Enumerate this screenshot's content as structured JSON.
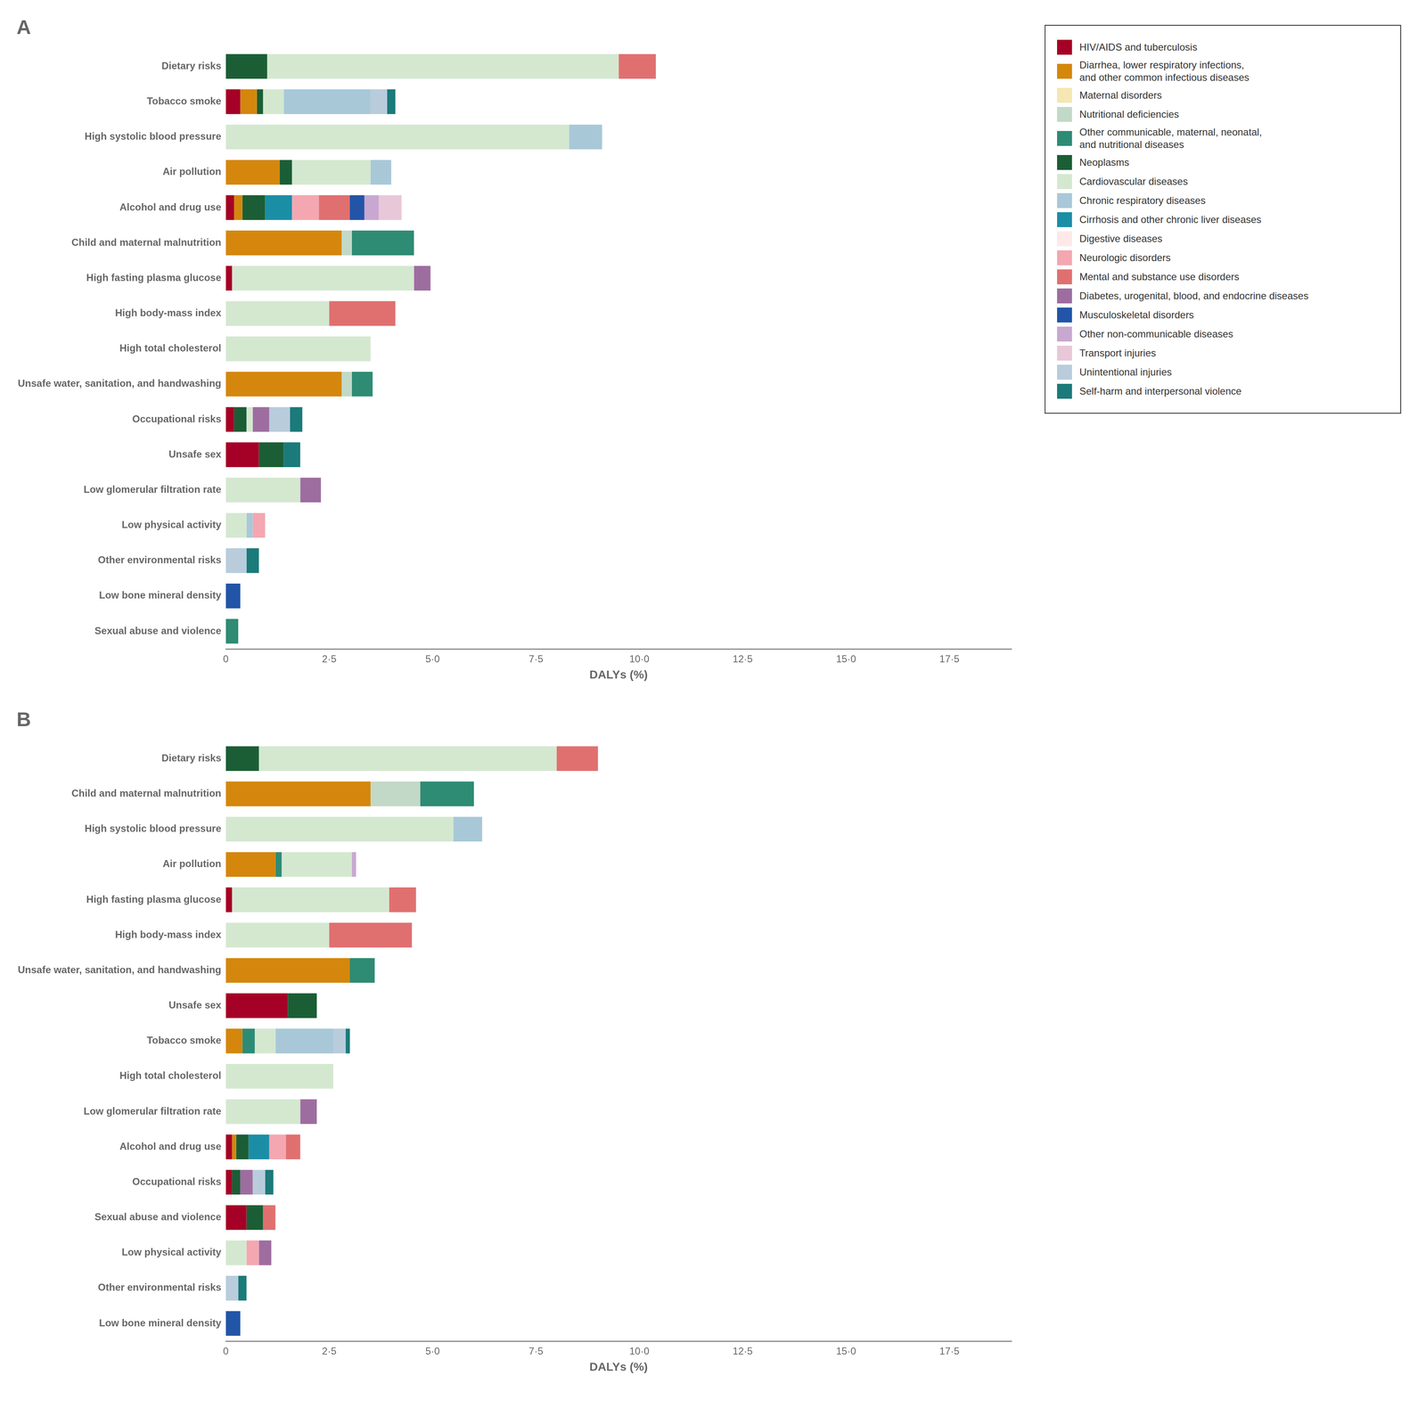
{
  "chart_data": [
    {
      "type": "bar",
      "title": "A",
      "orientation": "horizontal",
      "stacked": true,
      "grid": false,
      "legend": "right",
      "xlabel": "DALYs (%)",
      "xlim": [
        0,
        19.0
      ],
      "xticks": [
        0,
        {
          "value": 2.5,
          "label": "2·5"
        },
        {
          "value": 5.0,
          "label": "5·0"
        },
        {
          "value": 7.5,
          "label": "7·5"
        },
        {
          "value": 10.0,
          "label": "10·0"
        },
        {
          "value": 12.5,
          "label": "12·5"
        },
        {
          "value": 15.0,
          "label": "15·0"
        },
        {
          "value": 17.5,
          "label": "17·5"
        }
      ],
      "categories": [
        "Dietary risks",
        "Tobacco smoke",
        "High systolic blood pressure",
        "Air pollution",
        "Alcohol and drug use",
        "Child and maternal malnutrition",
        "High fasting plasma glucose",
        "High body-mass index",
        "High total cholesterol",
        "Unsafe water, sanitation, and handwashing",
        "Occupational risks",
        "Unsafe sex",
        "Low glomerular filtration rate",
        "Low physical activity",
        "Other environmental risks",
        "Low bone mineral density",
        "Sexual abuse and violence"
      ],
      "series": [
        {
          "name": "HIV/AIDS and tuberculosis",
          "color": "#A50026",
          "values": [
            0,
            0.35,
            0,
            0,
            0.2,
            0,
            0.15,
            0,
            0,
            0,
            0.2,
            0.8,
            0,
            0,
            0,
            0,
            0
          ]
        },
        {
          "name": "Diarrhea, lower respiratory infections,\nand other common infectious diseases",
          "color": "#D4870C",
          "values": [
            0,
            0.4,
            0,
            1.3,
            0.2,
            2.8,
            0,
            0,
            0,
            2.8,
            0,
            0,
            0,
            0,
            0,
            0,
            0
          ]
        },
        {
          "name": "Maternal disorders",
          "color": "#F5E6B2",
          "values": [
            0,
            0,
            0,
            0,
            0,
            0,
            0,
            0,
            0,
            0,
            0,
            0,
            0,
            0,
            0,
            0,
            0
          ]
        },
        {
          "name": "Nutritional deficiencies",
          "color": "#C2D9C8",
          "values": [
            0,
            0,
            0,
            0,
            0,
            0.25,
            0,
            0,
            0,
            0.25,
            0,
            0,
            0,
            0,
            0,
            0,
            0
          ]
        },
        {
          "name": "Other communicable, maternal, neonatal,\nand nutritional diseases",
          "color": "#2E8B74",
          "values": [
            0,
            0,
            0,
            0,
            0,
            1.5,
            0,
            0,
            0,
            0.5,
            0,
            0,
            0,
            0,
            0,
            0,
            0.3
          ]
        },
        {
          "name": "Neoplasms",
          "color": "#1B5E35",
          "values": [
            1.0,
            0.15,
            0,
            0.3,
            0.55,
            0,
            0,
            0,
            0,
            0,
            0.3,
            0.6,
            0,
            0,
            0,
            0,
            0
          ]
        },
        {
          "name": "Cardiovascular diseases",
          "color": "#D4E8D0",
          "values": [
            8.5,
            0.5,
            8.3,
            1.9,
            0,
            0,
            4.4,
            2.5,
            3.5,
            0,
            0.15,
            0,
            1.8,
            0.5,
            0,
            0,
            0
          ]
        },
        {
          "name": "Chronic respiratory diseases",
          "color": "#A8C8D8",
          "values": [
            0,
            2.1,
            0.8,
            0.5,
            0,
            0,
            0,
            0,
            0,
            0,
            0,
            0,
            0,
            0.15,
            0,
            0,
            0
          ]
        },
        {
          "name": "Cirrhosis and other chronic liver diseases",
          "color": "#1B8EA6",
          "values": [
            0,
            0,
            0,
            0,
            0.65,
            0,
            0,
            0,
            0,
            0,
            0,
            0,
            0,
            0,
            0,
            0,
            0
          ]
        },
        {
          "name": "Digestive diseases",
          "color": "#FFE8E8",
          "values": [
            0,
            0,
            0,
            0,
            0,
            0,
            0,
            0,
            0,
            0,
            0,
            0,
            0,
            0,
            0,
            0,
            0
          ]
        },
        {
          "name": "Neurologic disorders",
          "color": "#F4A7B0",
          "values": [
            0,
            0,
            0,
            0,
            0.65,
            0,
            0,
            0,
            0,
            0,
            0,
            0,
            0,
            0.3,
            0,
            0,
            0
          ]
        },
        {
          "name": "Mental and substance use disorders",
          "color": "#E07070",
          "values": [
            0.9,
            0,
            0,
            0,
            0.75,
            0,
            0,
            1.6,
            0,
            0,
            0,
            0,
            0,
            0,
            0,
            0,
            0
          ]
        },
        {
          "name": "Diabetes, urogenital, blood, and endocrine diseases",
          "color": "#9E6DA0",
          "values": [
            0,
            0,
            0,
            0,
            0,
            0,
            0.4,
            0,
            0,
            0,
            0.4,
            0,
            0.5,
            0,
            0,
            0,
            0
          ]
        },
        {
          "name": "Musculoskeletal disorders",
          "color": "#2255A8",
          "values": [
            0,
            0,
            0,
            0,
            0.35,
            0,
            0,
            0,
            0,
            0,
            0,
            0,
            0,
            0,
            0,
            0.35,
            0
          ]
        },
        {
          "name": "Other non-communicable diseases",
          "color": "#C8A8D0",
          "values": [
            0,
            0,
            0,
            0,
            0.35,
            0,
            0,
            0,
            0,
            0,
            0,
            0,
            0,
            0,
            0,
            0,
            0
          ]
        },
        {
          "name": "Transport injuries",
          "color": "#E8C8D8",
          "values": [
            0,
            0,
            0,
            0,
            0.55,
            0,
            0,
            0,
            0,
            0,
            0,
            0,
            0,
            0,
            0,
            0,
            0
          ]
        },
        {
          "name": "Unintentional injuries",
          "color": "#B8CCDC",
          "values": [
            0,
            0.4,
            0,
            0,
            0,
            0,
            0,
            0,
            0,
            0,
            0.5,
            0,
            0,
            0,
            0.5,
            0,
            0
          ]
        },
        {
          "name": "Self-harm and interpersonal violence",
          "color": "#1B7A7A",
          "values": [
            0,
            0.2,
            0,
            0,
            0,
            0,
            0,
            0,
            0,
            0,
            0.3,
            0.4,
            0,
            0,
            0.3,
            0,
            0
          ]
        }
      ]
    },
    {
      "type": "bar",
      "title": "B",
      "orientation": "horizontal",
      "stacked": true,
      "grid": false,
      "xlabel": "DALYs (%)",
      "xlim": [
        0,
        19.0
      ],
      "xticks": [
        0,
        {
          "value": 2.5,
          "label": "2·5"
        },
        {
          "value": 5.0,
          "label": "5·0"
        },
        {
          "value": 7.5,
          "label": "7·5"
        },
        {
          "value": 10.0,
          "label": "10·0"
        },
        {
          "value": 12.5,
          "label": "12·5"
        },
        {
          "value": 15.0,
          "label": "15·0"
        },
        {
          "value": 17.5,
          "label": "17·5"
        }
      ],
      "categories": [
        "Dietary risks",
        "Child and maternal malnutrition",
        "High systolic blood pressure",
        "Air pollution",
        "High fasting plasma glucose",
        "High body-mass index",
        "Unsafe water, sanitation, and handwashing",
        "Unsafe sex",
        "Tobacco smoke",
        "High total cholesterol",
        "Low glomerular filtration rate",
        "Alcohol and drug use",
        "Occupational risks",
        "Sexual abuse and violence",
        "Low physical activity",
        "Other environmental risks",
        "Low bone mineral density"
      ],
      "series": [
        {
          "name": "HIV/AIDS and tuberculosis",
          "color": "#A50026",
          "values": [
            0,
            0,
            0,
            0,
            0.15,
            0,
            0,
            1.5,
            0,
            0,
            0,
            0.15,
            0.15,
            0.5,
            0,
            0,
            0
          ]
        },
        {
          "name": "Diarrhea, lower respiratory infections,\nand other common infectious diseases",
          "color": "#D4870C",
          "values": [
            0,
            3.5,
            0,
            1.2,
            0,
            0,
            3.0,
            0,
            0.4,
            0,
            0,
            0.1,
            0,
            0,
            0,
            0,
            0
          ]
        },
        {
          "name": "Maternal disorders",
          "color": "#F5E6B2",
          "values": [
            0,
            0,
            0,
            0,
            0,
            0,
            0,
            0,
            0,
            0,
            0,
            0,
            0,
            0,
            0,
            0,
            0
          ]
        },
        {
          "name": "Nutritional deficiencies",
          "color": "#C2D9C8",
          "values": [
            0,
            1.2,
            0,
            0,
            0,
            0,
            0,
            0,
            0,
            0,
            0,
            0,
            0,
            0,
            0,
            0,
            0
          ]
        },
        {
          "name": "Other communicable, maternal, neonatal,\nand nutritional diseases",
          "color": "#2E8B74",
          "values": [
            0,
            1.3,
            0,
            0.15,
            0,
            0,
            0.6,
            0,
            0.3,
            0,
            0,
            0,
            0,
            0,
            0,
            0,
            0
          ]
        },
        {
          "name": "Neoplasms",
          "color": "#1B5E35",
          "values": [
            0.8,
            0,
            0,
            0,
            0,
            0,
            0,
            0.7,
            0,
            0,
            0,
            0.3,
            0.2,
            0.4,
            0,
            0,
            0
          ]
        },
        {
          "name": "Cardiovascular diseases",
          "color": "#D4E8D0",
          "values": [
            7.2,
            0,
            5.5,
            1.7,
            3.8,
            2.5,
            0,
            0,
            0.5,
            2.6,
            1.8,
            0,
            0,
            0,
            0.5,
            0,
            0
          ]
        },
        {
          "name": "Chronic respiratory diseases",
          "color": "#A8C8D8",
          "values": [
            0,
            0,
            0.7,
            0,
            0,
            0,
            0,
            0,
            1.4,
            0,
            0,
            0,
            0,
            0,
            0,
            0,
            0
          ]
        },
        {
          "name": "Cirrhosis and other chronic liver diseases",
          "color": "#1B8EA6",
          "values": [
            0,
            0,
            0,
            0,
            0,
            0,
            0,
            0,
            0,
            0,
            0,
            0.5,
            0,
            0,
            0,
            0,
            0
          ]
        },
        {
          "name": "Digestive diseases",
          "color": "#FFE8E8",
          "values": [
            0,
            0,
            0,
            0,
            0,
            0,
            0,
            0,
            0,
            0,
            0,
            0,
            0,
            0,
            0,
            0,
            0
          ]
        },
        {
          "name": "Neurologic disorders",
          "color": "#F4A7B0",
          "values": [
            0,
            0,
            0,
            0,
            0,
            0,
            0,
            0,
            0,
            0,
            0,
            0.4,
            0,
            0,
            0.3,
            0,
            0
          ]
        },
        {
          "name": "Mental and substance use disorders",
          "color": "#E07070",
          "values": [
            1.0,
            0,
            0,
            0,
            0.65,
            2.0,
            0,
            0,
            0,
            0,
            0,
            0.35,
            0,
            0.3,
            0,
            0,
            0
          ]
        },
        {
          "name": "Diabetes, urogenital, blood, and endocrine diseases",
          "color": "#9E6DA0",
          "values": [
            0,
            0,
            0,
            0,
            0,
            0,
            0,
            0,
            0,
            0,
            0.4,
            0,
            0.3,
            0,
            0.3,
            0,
            0
          ]
        },
        {
          "name": "Musculoskeletal disorders",
          "color": "#2255A8",
          "values": [
            0,
            0,
            0,
            0,
            0,
            0,
            0,
            0,
            0,
            0,
            0,
            0,
            0,
            0,
            0,
            0,
            0.35
          ]
        },
        {
          "name": "Other non-communicable diseases",
          "color": "#C8A8D0",
          "values": [
            0,
            0,
            0,
            0.1,
            0,
            0,
            0,
            0,
            0,
            0,
            0,
            0,
            0,
            0,
            0,
            0,
            0
          ]
        },
        {
          "name": "Transport injuries",
          "color": "#E8C8D8",
          "values": [
            0,
            0,
            0,
            0,
            0,
            0,
            0,
            0,
            0,
            0,
            0,
            0,
            0,
            0,
            0,
            0,
            0
          ]
        },
        {
          "name": "Unintentional injuries",
          "color": "#B8CCDC",
          "values": [
            0,
            0,
            0,
            0,
            0,
            0,
            0,
            0,
            0.3,
            0,
            0,
            0,
            0.3,
            0,
            0,
            0.3,
            0
          ]
        },
        {
          "name": "Self-harm and interpersonal violence",
          "color": "#1B7A7A",
          "values": [
            0,
            0,
            0,
            0,
            0,
            0,
            0,
            0,
            0.1,
            0,
            0,
            0,
            0.2,
            0,
            0,
            0.2,
            0
          ]
        }
      ]
    }
  ]
}
